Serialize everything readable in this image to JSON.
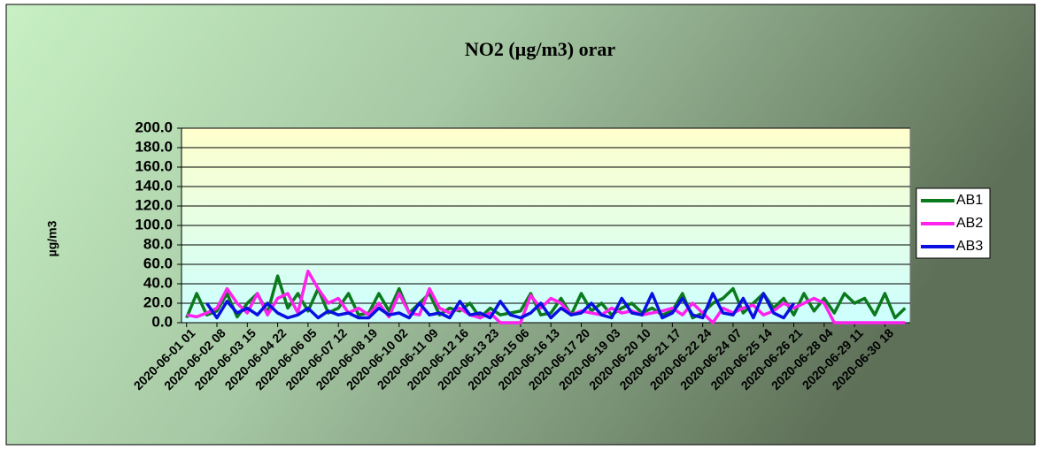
{
  "chart_data": {
    "type": "line",
    "title": "NO2 (µg/m3) orar",
    "y_label": "µg/m3",
    "legend": "right",
    "grid": true,
    "ylim": [
      0,
      200
    ],
    "yticks": [
      {
        "value": 0,
        "label": "0.0"
      },
      {
        "value": 20,
        "label": "20.0"
      },
      {
        "value": 40,
        "label": "40.0"
      },
      {
        "value": 60,
        "label": "60.0"
      },
      {
        "value": 80,
        "label": "80.0"
      },
      {
        "value": 100,
        "label": "100.0"
      },
      {
        "value": 120,
        "label": "120.0"
      },
      {
        "value": 140,
        "label": "140.0"
      },
      {
        "value": 160,
        "label": "160.0"
      },
      {
        "value": 180,
        "label": "180.0"
      },
      {
        "value": 200,
        "label": "200.0"
      }
    ],
    "categories": [
      "2020-06-01 01",
      null,
      null,
      "2020-06-02 08",
      null,
      null,
      "2020-06-03 15",
      null,
      null,
      "2020-06-04 22",
      null,
      null,
      "2020-06-06 05",
      null,
      null,
      "2020-06-07 12",
      null,
      null,
      "2020-06-08 19",
      null,
      null,
      "2020-06-10 02",
      null,
      null,
      "2020-06-11 09",
      null,
      null,
      "2020-06-12 16",
      null,
      null,
      "2020-06-13 23",
      null,
      null,
      "2020-06-15 06",
      null,
      null,
      "2020-06-16 13",
      null,
      null,
      "2020-06-17 20",
      null,
      null,
      "2020-06-19 03",
      null,
      null,
      "2020-06-20 10",
      null,
      null,
      "2020-06-21 17",
      null,
      null,
      "2020-06-22 24",
      null,
      null,
      "2020-06-24 07",
      null,
      null,
      "2020-06-25 14",
      null,
      null,
      "2020-06-26 21",
      null,
      null,
      "2020-06-28 04",
      null,
      null,
      "2020-06-29 11",
      null,
      null,
      "2020-06-30 18",
      null,
      null
    ],
    "series": [
      {
        "name": "AB1",
        "color": "#0a7a1c",
        "values": [
          5,
          30,
          8,
          12,
          30,
          6,
          20,
          30,
          10,
          48,
          15,
          30,
          12,
          35,
          10,
          15,
          30,
          8,
          10,
          30,
          12,
          35,
          10,
          20,
          30,
          8,
          15,
          12,
          20,
          5,
          15,
          8,
          10,
          12,
          30,
          8,
          10,
          25,
          8,
          30,
          12,
          20,
          8,
          15,
          20,
          10,
          15,
          8,
          12,
          30,
          5,
          10,
          20,
          25,
          35,
          10,
          20,
          30,
          15,
          25,
          8,
          30,
          12,
          25,
          10,
          30,
          20,
          25,
          8,
          30,
          5,
          15
        ]
      },
      {
        "name": "AB2",
        "color": "#ff22ee",
        "values": [
          8,
          6,
          10,
          15,
          35,
          20,
          10,
          30,
          8,
          25,
          30,
          10,
          53,
          35,
          20,
          25,
          10,
          15,
          8,
          20,
          6,
          30,
          10,
          8,
          35,
          15,
          10,
          15,
          8,
          5,
          10,
          0,
          0,
          0,
          28,
          15,
          25,
          20,
          8,
          12,
          10,
          8,
          15,
          10,
          12,
          8,
          10,
          12,
          15,
          8,
          20,
          10,
          0,
          15,
          10,
          15,
          18,
          8,
          12,
          20,
          15,
          20,
          25,
          20,
          0,
          0,
          0,
          0,
          0,
          0,
          0,
          0
        ]
      },
      {
        "name": "AB3",
        "color": "#0a10e0",
        "values": [
          null,
          null,
          20,
          5,
          22,
          10,
          15,
          8,
          20,
          10,
          5,
          8,
          15,
          5,
          12,
          8,
          10,
          5,
          5,
          15,
          8,
          10,
          5,
          20,
          8,
          10,
          5,
          22,
          8,
          10,
          5,
          22,
          8,
          5,
          10,
          20,
          5,
          15,
          8,
          10,
          20,
          8,
          5,
          25,
          10,
          8,
          30,
          5,
          10,
          25,
          8,
          5,
          30,
          10,
          8,
          25,
          5,
          30,
          10,
          5,
          20,
          null,
          null,
          null,
          null,
          null,
          null,
          null,
          null,
          null,
          null,
          null
        ]
      }
    ]
  }
}
